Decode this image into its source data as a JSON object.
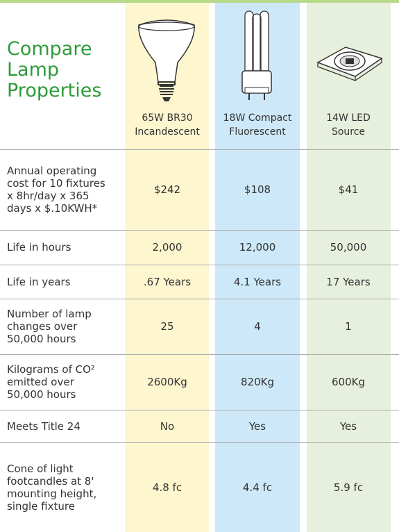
{
  "title": [
    "Compare",
    "Lamp",
    "Properties"
  ],
  "columns": [
    {
      "lines": [
        "65W BR30",
        "Incandescent"
      ]
    },
    {
      "lines": [
        "18W Compact",
        "Fluorescent"
      ]
    },
    {
      "lines": [
        "14W LED",
        "Source"
      ]
    }
  ],
  "rows": [
    {
      "label": [
        "Annual operating",
        "cost for 10 fixtures",
        "x 8hr/day x 365",
        "days x  $.10KWH*"
      ],
      "cells": [
        "$242",
        "$108",
        "$41"
      ]
    },
    {
      "label": [
        "Life in hours"
      ],
      "cells": [
        "2,000",
        "12,000",
        "50,000"
      ]
    },
    {
      "label": [
        "Life in years"
      ],
      "cells": [
        ".67 Years",
        "4.1 Years",
        "17 Years"
      ]
    },
    {
      "label": [
        "Number of lamp",
        "changes over",
        "50,000 hours"
      ],
      "cells": [
        "25",
        "4",
        "1"
      ]
    },
    {
      "label": [
        "Kilograms of CO²",
        "emitted over",
        "50,000 hours"
      ],
      "cells": [
        "2600Kg",
        "820Kg",
        "600Kg"
      ]
    },
    {
      "label": [
        "Meets Title 24"
      ],
      "cells": [
        "No",
        "Yes",
        "Yes"
      ]
    },
    {
      "label": [
        "Cone of light",
        "footcandles at 8'",
        "mounting height,",
        "single fixture"
      ],
      "cells": [
        "4.8 fc",
        "4.4 fc",
        "5.9 fc"
      ]
    }
  ]
}
